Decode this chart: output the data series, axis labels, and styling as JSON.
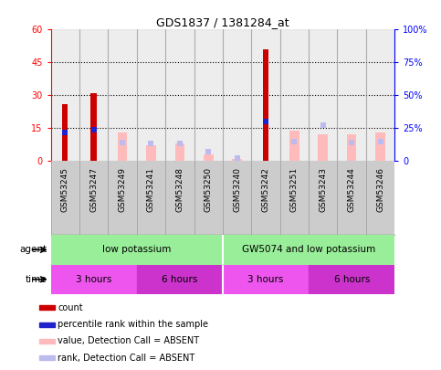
{
  "title": "GDS1837 / 1381284_at",
  "samples": [
    "GSM53245",
    "GSM53247",
    "GSM53249",
    "GSM53241",
    "GSM53248",
    "GSM53250",
    "GSM53240",
    "GSM53242",
    "GSM53251",
    "GSM53243",
    "GSM53244",
    "GSM53246"
  ],
  "count_values": [
    26,
    31,
    null,
    null,
    null,
    null,
    null,
    51,
    null,
    null,
    null,
    null
  ],
  "percentile_values": [
    22,
    24,
    null,
    null,
    null,
    null,
    null,
    30,
    null,
    null,
    null,
    null
  ],
  "absent_value": [
    null,
    null,
    13,
    7,
    8,
    3,
    1,
    null,
    14,
    12,
    12,
    13
  ],
  "absent_rank": [
    null,
    null,
    14,
    13,
    13,
    7,
    2,
    null,
    15,
    27,
    14,
    15
  ],
  "color_count": "#cc0000",
  "color_percentile": "#2222cc",
  "color_absent_value": "#ffbbbb",
  "color_absent_rank": "#bbbbee",
  "color_gray_col": "#cccccc",
  "agent_groups": [
    {
      "label": "low potassium",
      "start": 0,
      "end": 6,
      "color": "#99ee99"
    },
    {
      "label": "GW5074 and low potassium",
      "start": 6,
      "end": 12,
      "color": "#99ee99"
    }
  ],
  "time_groups": [
    {
      "label": "3 hours",
      "start": 0,
      "end": 3,
      "color": "#ee44ee"
    },
    {
      "label": "6 hours",
      "start": 3,
      "end": 6,
      "color": "#cc22cc"
    },
    {
      "label": "3 hours",
      "start": 6,
      "end": 9,
      "color": "#ee44ee"
    },
    {
      "label": "6 hours",
      "start": 9,
      "end": 12,
      "color": "#cc22cc"
    }
  ],
  "legend_items": [
    {
      "label": "count",
      "color": "#cc0000"
    },
    {
      "label": "percentile rank within the sample",
      "color": "#2222cc"
    },
    {
      "label": "value, Detection Call = ABSENT",
      "color": "#ffbbbb"
    },
    {
      "label": "rank, Detection Call = ABSENT",
      "color": "#bbbbee"
    }
  ]
}
